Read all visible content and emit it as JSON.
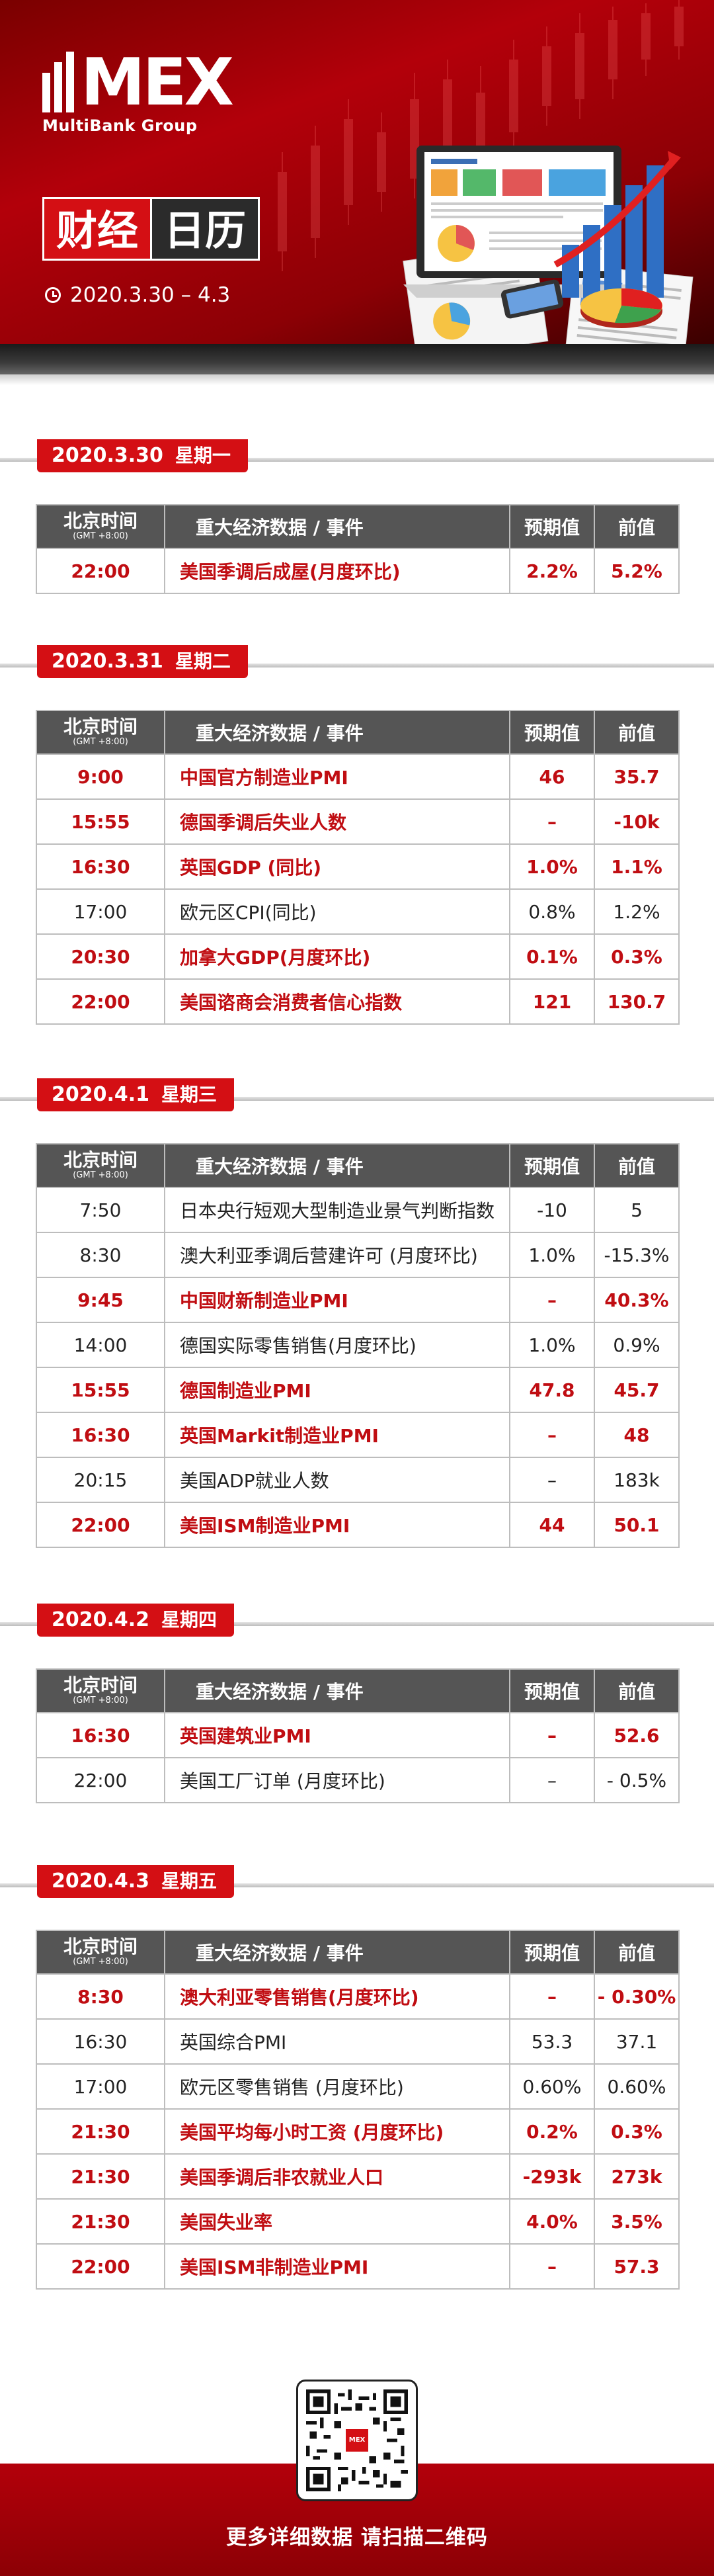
{
  "header": {
    "logo_text": "MEX",
    "brand": "MultiBank Group",
    "title_red": "财经",
    "title_dark": "日历",
    "date_range": "2020.3.30 – 4.3",
    "clock_icon": "clock-icon"
  },
  "table_headers": {
    "time": "北京时间",
    "time_zone": "(GMT +8:00)",
    "event": "重大经济数据 / 事件",
    "forecast": "预期值",
    "previous": "前值"
  },
  "days": [
    {
      "date": "2020.3.30",
      "weekday": "星期一",
      "rows": [
        {
          "time": "22:00",
          "event": "美国季调后成屋(月度环比)",
          "forecast": "2.2%",
          "previous": "5.2%",
          "highlight": true
        }
      ]
    },
    {
      "date": "2020.3.31",
      "weekday": "星期二",
      "rows": [
        {
          "time": "9:00",
          "event": "中国官方制造业PMI",
          "forecast": "46",
          "previous": "35.7",
          "highlight": true
        },
        {
          "time": "15:55",
          "event": "德国季调后失业人数",
          "forecast": "–",
          "previous": "-10k",
          "highlight": true
        },
        {
          "time": "16:30",
          "event": "英国GDP (同比)",
          "forecast": "1.0%",
          "previous": "1.1%",
          "highlight": true
        },
        {
          "time": "17:00",
          "event": "欧元区CPI(同比)",
          "forecast": "0.8%",
          "previous": "1.2%",
          "highlight": false
        },
        {
          "time": "20:30",
          "event": "加拿大GDP(月度环比)",
          "forecast": "0.1%",
          "previous": "0.3%",
          "highlight": true
        },
        {
          "time": "22:00",
          "event": "美国谘商会消费者信心指数",
          "forecast": "121",
          "previous": "130.7",
          "highlight": true
        }
      ]
    },
    {
      "date": "2020.4.1",
      "weekday": "星期三",
      "rows": [
        {
          "time": "7:50",
          "event": "日本央行短观大型制造业景气判断指数",
          "forecast": "-10",
          "previous": "5",
          "highlight": false
        },
        {
          "time": "8:30",
          "event": "澳大利亚季调后营建许可 (月度环比)",
          "forecast": "1.0%",
          "previous": "-15.3%",
          "highlight": false
        },
        {
          "time": "9:45",
          "event": "中国财新制造业PMI",
          "forecast": "–",
          "previous": "40.3%",
          "highlight": true
        },
        {
          "time": "14:00",
          "event": "德国实际零售销售(月度环比)",
          "forecast": "1.0%",
          "previous": "0.9%",
          "highlight": false
        },
        {
          "time": "15:55",
          "event": "德国制造业PMI",
          "forecast": "47.8",
          "previous": "45.7",
          "highlight": true
        },
        {
          "time": "16:30",
          "event": "英国Markit制造业PMI",
          "forecast": "–",
          "previous": "48",
          "highlight": true
        },
        {
          "time": "20:15",
          "event": "美国ADP就业人数",
          "forecast": "–",
          "previous": "183k",
          "highlight": false
        },
        {
          "time": "22:00",
          "event": "美国ISM制造业PMI",
          "forecast": "44",
          "previous": "50.1",
          "highlight": true
        }
      ]
    },
    {
      "date": "2020.4.2",
      "weekday": "星期四",
      "rows": [
        {
          "time": "16:30",
          "event": "英国建筑业PMI",
          "forecast": "–",
          "previous": "52.6",
          "highlight": true
        },
        {
          "time": "22:00",
          "event": "美国工厂订单 (月度环比)",
          "forecast": "–",
          "previous": "- 0.5%",
          "highlight": false
        }
      ]
    },
    {
      "date": "2020.4.3",
      "weekday": "星期五",
      "rows": [
        {
          "time": "8:30",
          "event": "澳大利亚零售销售(月度环比)",
          "forecast": "–",
          "previous": "- 0.30%",
          "highlight": true
        },
        {
          "time": "16:30",
          "event": "英国综合PMI",
          "forecast": "53.3",
          "previous": "37.1",
          "highlight": false
        },
        {
          "time": "17:00",
          "event": "欧元区零售销售 (月度环比)",
          "forecast": "0.60%",
          "previous": "0.60%",
          "highlight": false
        },
        {
          "time": "21:30",
          "event": "美国平均每小时工资 (月度环比)",
          "forecast": "0.2%",
          "previous": "0.3%",
          "highlight": true
        },
        {
          "time": "21:30",
          "event": "美国季调后非农就业人口",
          "forecast": "-293k",
          "previous": "273k",
          "highlight": true
        },
        {
          "time": "21:30",
          "event": "美国失业率",
          "forecast": "4.0%",
          "previous": "3.5%",
          "highlight": true
        },
        {
          "time": "22:00",
          "event": "美国ISM非制造业PMI",
          "forecast": "–",
          "previous": "57.3",
          "highlight": true
        }
      ]
    }
  ],
  "footer": {
    "cta": "更多详细数据 请扫描二维码",
    "qr_logo_text": "MEX",
    "qr_icon": "qr-code-icon"
  },
  "colors": {
    "brand_red": "#d40f14",
    "highlight_text": "#c00d12",
    "header_grey": "#555555"
  }
}
